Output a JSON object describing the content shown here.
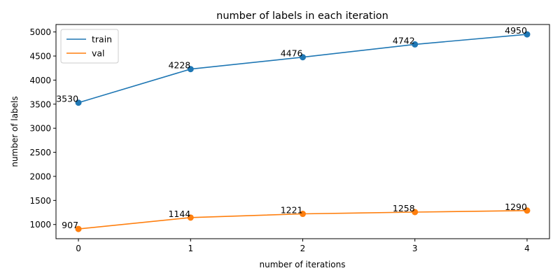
{
  "chart_data": {
    "type": "line",
    "title": "number of labels in each iteration",
    "xlabel": "number of iterations",
    "ylabel": "number of labels",
    "x": [
      0,
      1,
      2,
      3,
      4
    ],
    "xticks": [
      "0",
      "1",
      "2",
      "3",
      "4"
    ],
    "yticks": [
      "1000",
      "1500",
      "2000",
      "2500",
      "3000",
      "3500",
      "4000",
      "4500",
      "5000"
    ],
    "xlim": [
      -0.2,
      4.2
    ],
    "ylim": [
      705,
      5155
    ],
    "grid": false,
    "legend_position": "top-left",
    "series": [
      {
        "name": "train",
        "color": "#1f77b4",
        "values": [
          3530,
          4228,
          4476,
          4742,
          4950
        ],
        "labels": [
          "3530",
          "4228",
          "4476",
          "4742",
          "4950"
        ]
      },
      {
        "name": "val",
        "color": "#ff7f0e",
        "values": [
          907,
          1144,
          1221,
          1258,
          1290
        ],
        "labels": [
          "907",
          "1144",
          "1221",
          "1258",
          "1290"
        ]
      }
    ]
  }
}
